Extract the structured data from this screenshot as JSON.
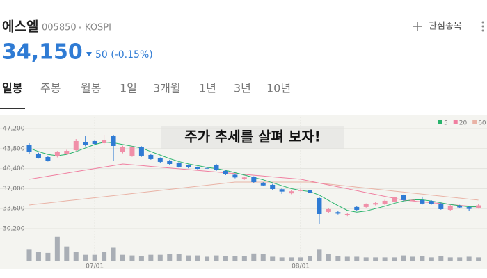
{
  "header": {
    "name": "에스엘",
    "code": "005850",
    "market": "KOSPI",
    "price": "34,150",
    "change": "50 (-0.15%)",
    "watchlist": "관심종목"
  },
  "tabs": [
    "일봉",
    "주봉",
    "월봉",
    "1일",
    "3개월",
    "1년",
    "3년",
    "10년"
  ],
  "chart_data": {
    "type": "candlestick",
    "title": "주가 추세를 살펴 보자!",
    "categories": [
      null,
      null,
      null,
      null,
      null,
      null,
      null,
      "07/01",
      null,
      null,
      null,
      null,
      null,
      null,
      null,
      null,
      null,
      null,
      null,
      null,
      null,
      null,
      null,
      null,
      null,
      null,
      null,
      null,
      null,
      "08/01",
      null,
      null,
      null,
      null,
      null,
      null,
      null,
      null,
      null,
      null,
      null,
      null,
      null,
      null,
      null,
      null,
      null,
      null,
      null
    ],
    "open": [
      44370,
      42950,
      42360,
      42480,
      42950,
      43540,
      44840,
      45080,
      44720,
      45900,
      43190,
      42600,
      44010,
      42720,
      42130,
      41770,
      41420,
      40950,
      40600,
      40500,
      41060,
      40000,
      39350,
      38650,
      38940,
      38000,
      37640,
      36900,
      36200,
      36600,
      36700,
      35400,
      33040,
      33000,
      32450,
      33870,
      33870,
      34300,
      34340,
      34810,
      35870,
      34900,
      35050,
      34900,
      34460,
      33390,
      34100,
      33850,
      33750
    ],
    "high": [
      44720,
      43100,
      42500,
      43400,
      43600,
      45430,
      45900,
      45300,
      46140,
      46140,
      44300,
      44200,
      44200,
      42900,
      42300,
      41900,
      41550,
      41100,
      40750,
      40650,
      41200,
      40150,
      39500,
      39050,
      39100,
      38100,
      37800,
      37050,
      36700,
      37000,
      36900,
      35640,
      33650,
      33150,
      32800,
      34000,
      34500,
      34700,
      35100,
      35700,
      36000,
      35250,
      35640,
      35000,
      34600,
      34250,
      34250,
      34000,
      34400
    ],
    "low": [
      42950,
      42100,
      41600,
      42300,
      42800,
      43400,
      44200,
      44400,
      44500,
      41770,
      43000,
      42400,
      42400,
      41900,
      41400,
      41000,
      40550,
      40450,
      40200,
      40250,
      40000,
      39300,
      38750,
      38500,
      37950,
      37400,
      36750,
      36100,
      36050,
      36500,
      36000,
      31030,
      32900,
      32600,
      32300,
      33200,
      33750,
      34150,
      34200,
      34650,
      34900,
      34750,
      34300,
      34300,
      33400,
      33250,
      33650,
      33200,
      33600
    ],
    "close": [
      43190,
      42240,
      41770,
      43190,
      43420,
      45080,
      44370,
      44600,
      45190,
      44250,
      44130,
      44010,
      42600,
      42010,
      41540,
      41180,
      40710,
      40650,
      40350,
      40400,
      40120,
      39500,
      38900,
      38900,
      38110,
      37550,
      36930,
      36500,
      36550,
      36800,
      36230,
      32680,
      33510,
      32750,
      32680,
      33390,
      34340,
      34550,
      34930,
      35520,
      35050,
      35100,
      34460,
      34450,
      33510,
      34100,
      33800,
      33550,
      34150
    ],
    "up_color": "#f08fa8",
    "down_color": "#2f7bd4",
    "series": [
      {
        "name": "5",
        "color": "#27b36b",
        "values": [
          43900,
          43300,
          42800,
          42600,
          42800,
          43300,
          43900,
          44500,
          44900,
          44800,
          44500,
          44200,
          43900,
          43300,
          42700,
          42100,
          41600,
          41200,
          40900,
          40600,
          40400,
          40100,
          39700,
          39300,
          38900,
          38500,
          38000,
          37500,
          37000,
          36700,
          36500,
          35900,
          35000,
          34100,
          33300,
          33000,
          33200,
          33600,
          34000,
          34500,
          34900,
          35100,
          35100,
          34900,
          34600,
          34300,
          34100,
          33900,
          33900
        ]
      },
      {
        "name": "20",
        "color": "#f07fa0",
        "values": [
          38590,
          38850,
          39110,
          39370,
          39630,
          39890,
          40140,
          40400,
          40660,
          40920,
          41180,
          41040,
          40910,
          40770,
          40640,
          40500,
          40360,
          40230,
          40090,
          39950,
          39820,
          39680,
          39550,
          39410,
          39270,
          39140,
          39000,
          38860,
          38730,
          38590,
          38270,
          37940,
          37620,
          37300,
          36980,
          36660,
          36330,
          36010,
          35690,
          35370,
          35050,
          34900,
          34750,
          34610,
          34460,
          34310,
          34160,
          34020,
          33870
        ]
      },
      {
        "name": "60",
        "color": "#e9b3a6",
        "values": [
          34220,
          34400,
          34570,
          34750,
          34930,
          35100,
          35280,
          35460,
          35630,
          35810,
          35990,
          36160,
          36340,
          36520,
          36690,
          36870,
          37050,
          37230,
          37400,
          37580,
          37760,
          37930,
          38110,
          38110,
          38110,
          38110,
          38110,
          38110,
          38110,
          38110,
          38110,
          37940,
          37770,
          37600,
          37430,
          37260,
          37090,
          36920,
          36750,
          36580,
          36410,
          36240,
          36070,
          35900,
          35730,
          35560,
          35390,
          35220,
          35050
        ]
      }
    ],
    "volume": {
      "color": "#a9aeb5",
      "ylim": [
        0,
        40
      ],
      "values": [
        18,
        13,
        12,
        37,
        22,
        14,
        9,
        9,
        13,
        20,
        9,
        8,
        7,
        9,
        9,
        10,
        10,
        8,
        8,
        6,
        8,
        7,
        7,
        7,
        11,
        10,
        6,
        5,
        5,
        5,
        7,
        18,
        10,
        7,
        6,
        6,
        5,
        5,
        5,
        5,
        8,
        6,
        7,
        5,
        7,
        5,
        5,
        6,
        5
      ]
    },
    "ylim": [
      30200,
      47200
    ],
    "yticks": [
      {
        "value": 30200,
        "label": "30,200"
      },
      {
        "value": 33600,
        "label": "33,600"
      },
      {
        "value": 37000,
        "label": "37,000"
      },
      {
        "value": 40400,
        "label": "40,400"
      },
      {
        "value": 43800,
        "label": "43,800"
      },
      {
        "value": 47200,
        "label": "47,200"
      }
    ],
    "grid": true
  }
}
